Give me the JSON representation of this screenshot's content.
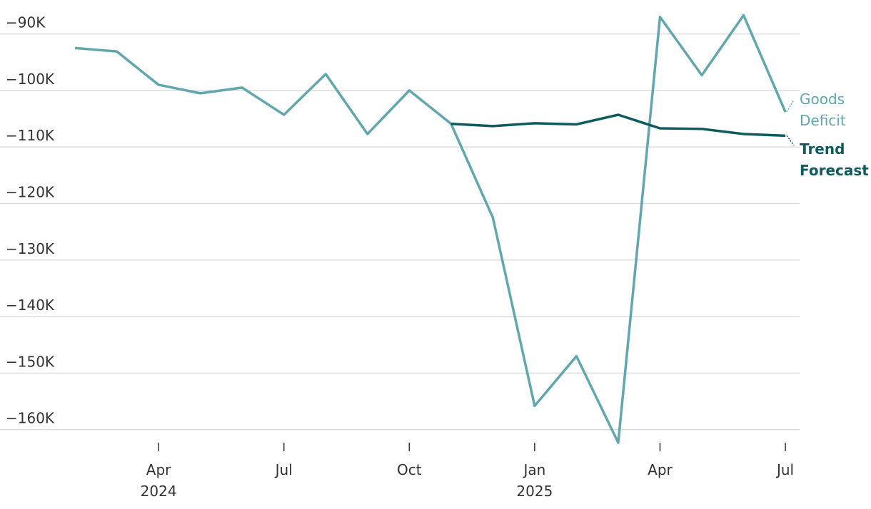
{
  "chart_data": {
    "type": "line",
    "x": [
      "2024-02",
      "2024-03",
      "2024-04",
      "2024-05",
      "2024-06",
      "2024-07",
      "2024-08",
      "2024-09",
      "2024-10",
      "2024-11",
      "2024-12",
      "2025-01",
      "2025-02",
      "2025-03",
      "2025-04",
      "2025-05",
      "2025-06",
      "2025-07"
    ],
    "series": [
      {
        "name": "Goods Deficit",
        "color": "#62a6ae",
        "values": [
          -92500,
          -93100,
          -99000,
          -100500,
          -99500,
          -104300,
          -97100,
          -107700,
          -100000,
          -105900,
          -122500,
          -155800,
          -147000,
          -162300,
          -87000,
          -97300,
          -86700,
          -103800
        ]
      },
      {
        "name": "Trend Forecast",
        "color": "#0d5b5f",
        "values": [
          null,
          null,
          null,
          null,
          null,
          null,
          null,
          null,
          null,
          -105900,
          -106300,
          -105800,
          -106000,
          -104300,
          -106700,
          -106800,
          -107700,
          -108000
        ]
      }
    ],
    "xlim": [
      "2024-01",
      "2025-08"
    ],
    "xticks": [
      {
        "value": "2024-04",
        "label": "Apr",
        "year": "2024"
      },
      {
        "value": "2024-07",
        "label": "Jul"
      },
      {
        "value": "2024-10",
        "label": "Oct"
      },
      {
        "value": "2025-01",
        "label": "Jan",
        "year": "2025"
      },
      {
        "value": "2025-04",
        "label": "Apr"
      },
      {
        "value": "2025-07",
        "label": "Jul"
      }
    ],
    "ylim": [
      -163000,
      -84000
    ],
    "yticks": [
      {
        "value": -90000,
        "label": "−90K"
      },
      {
        "value": -100000,
        "label": "−100K"
      },
      {
        "value": -110000,
        "label": "−110K"
      },
      {
        "value": -120000,
        "label": "−120K"
      },
      {
        "value": -130000,
        "label": "−130K"
      },
      {
        "value": -140000,
        "label": "−140K"
      },
      {
        "value": -150000,
        "label": "−150K"
      },
      {
        "value": -160000,
        "label": "−160K"
      }
    ],
    "grid": true
  }
}
